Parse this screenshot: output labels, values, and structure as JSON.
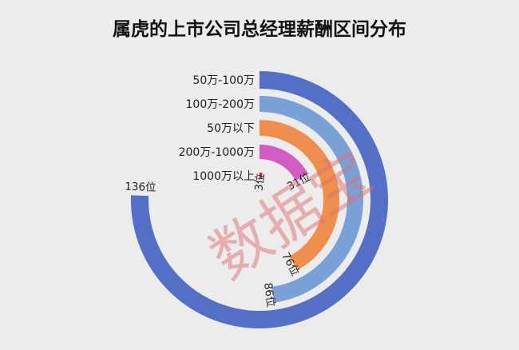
{
  "chart_data": {
    "type": "radial-bar",
    "title": "属虎的上市公司总经理薪酬区间分布",
    "categories": [
      "50万-100万",
      "100万-200万",
      "50万以下",
      "200万-1000万",
      "1000万以上"
    ],
    "values": [
      136,
      86,
      76,
      31,
      3
    ],
    "value_labels": [
      "136位",
      "86位",
      "76位",
      "31位",
      "3位"
    ],
    "colors": [
      "#5470c6",
      "#7aa0d8",
      "#ef8f4f",
      "#d35cc4",
      "#d81e3c"
    ],
    "legend": "category labels at start of each ring"
  },
  "watermark": "数据宝"
}
